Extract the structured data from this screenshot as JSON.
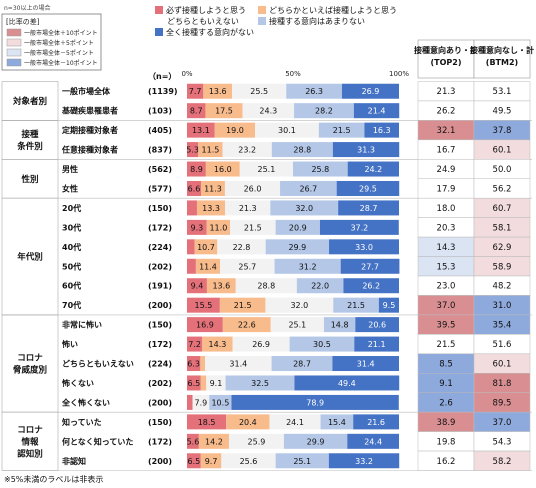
{
  "header": {
    "note": "n=30以上の場合",
    "legend_title": "[比率の差]",
    "diff_legend": [
      {
        "label": "一般市場全体＋10ポイント",
        "color": "#d98f92"
      },
      {
        "label": "一般市場全体＋5ポイント",
        "color": "#f2dcdd"
      },
      {
        "label": "一般市場全体－5ポイント",
        "color": "#dbe4f3"
      },
      {
        "label": "一般市場全体－10ポイント",
        "color": "#8ea9db"
      }
    ],
    "n_label": "（n=）",
    "footnote": "※5%未満のラベルは非表示"
  },
  "chart_data": {
    "type": "bar",
    "stacked": true,
    "orientation": "horizontal",
    "xlim": [
      0,
      100
    ],
    "xticks": [
      "0%",
      "50%",
      "100%"
    ],
    "series": [
      {
        "name": "必ず接種しようと思う",
        "color": "#e4717a"
      },
      {
        "name": "どちらかといえば接種しようと思う",
        "color": "#f8bb8c"
      },
      {
        "name": "どちらともいえない",
        "color": "#f2f2f2"
      },
      {
        "name": "接種する意向はあまりない",
        "color": "#b4c7e7"
      },
      {
        "name": "全く接種する意向がない",
        "color": "#4472c4"
      }
    ],
    "summary_headers": [
      "接種意向あり・計\n(TOP2)",
      "接種意向なし・計\n(BTM2)"
    ],
    "groups": [
      {
        "name": "対象者別",
        "rows": [
          0,
          1
        ]
      },
      {
        "name": "接種\n条件別",
        "rows": [
          2,
          3
        ]
      },
      {
        "name": "性別",
        "rows": [
          4,
          5
        ]
      },
      {
        "name": "年代別",
        "rows": [
          6,
          7,
          8,
          9,
          10,
          11
        ]
      },
      {
        "name": "コロナ\n脅威度別",
        "rows": [
          12,
          13,
          14,
          15,
          16
        ]
      },
      {
        "name": "コロナ\n情報\n認知別",
        "rows": [
          17,
          18,
          19
        ]
      }
    ],
    "rows": [
      {
        "label": "一般市場全体",
        "n": "(1139)",
        "values": [
          7.7,
          13.6,
          25.5,
          26.3,
          26.9
        ],
        "top2": 21.3,
        "btm2": 53.1,
        "top2_flag": "",
        "btm2_flag": ""
      },
      {
        "label": "基礎疾患罹患者",
        "n": "(103)",
        "values": [
          8.7,
          17.5,
          24.3,
          28.2,
          21.4
        ],
        "top2": 26.2,
        "btm2": 49.5,
        "top2_flag": "",
        "btm2_flag": ""
      },
      {
        "label": "定期接種対象者",
        "n": "(405)",
        "values": [
          13.1,
          19.0,
          30.1,
          21.5,
          16.3
        ],
        "top2": 32.1,
        "btm2": 37.8,
        "top2_flag": "p10",
        "btm2_flag": "m10"
      },
      {
        "label": "任意接種対象者",
        "n": "(837)",
        "values": [
          5.3,
          11.5,
          23.2,
          28.8,
          31.3
        ],
        "top2": 16.7,
        "btm2": 60.1,
        "top2_flag": "",
        "btm2_flag": "p5"
      },
      {
        "label": "男性",
        "n": "(562)",
        "values": [
          8.9,
          16.0,
          25.1,
          25.8,
          24.2
        ],
        "top2": 24.9,
        "btm2": 50.0,
        "top2_flag": "",
        "btm2_flag": ""
      },
      {
        "label": "女性",
        "n": "(577)",
        "values": [
          6.6,
          11.3,
          26.0,
          26.7,
          29.5
        ],
        "top2": 17.9,
        "btm2": 56.2,
        "top2_flag": "",
        "btm2_flag": ""
      },
      {
        "label": "20代",
        "n": "(150)",
        "values": [
          4.7,
          13.3,
          21.3,
          32.0,
          28.7
        ],
        "top2": 18.0,
        "btm2": 60.7,
        "top2_flag": "",
        "btm2_flag": "p5"
      },
      {
        "label": "30代",
        "n": "(172)",
        "values": [
          9.3,
          11.0,
          21.5,
          20.9,
          37.2
        ],
        "top2": 20.3,
        "btm2": 58.1,
        "top2_flag": "",
        "btm2_flag": "p5"
      },
      {
        "label": "40代",
        "n": "(224)",
        "values": [
          3.6,
          10.7,
          22.8,
          29.9,
          33.0
        ],
        "top2": 14.3,
        "btm2": 62.9,
        "top2_flag": "m5",
        "btm2_flag": "p5"
      },
      {
        "label": "50代",
        "n": "(202)",
        "values": [
          4.2,
          11.4,
          25.7,
          31.2,
          27.7
        ],
        "top2": 15.3,
        "btm2": 58.9,
        "top2_flag": "m5",
        "btm2_flag": "p5"
      },
      {
        "label": "60代",
        "n": "(191)",
        "values": [
          9.4,
          13.6,
          28.8,
          22.0,
          26.2
        ],
        "top2": 23.0,
        "btm2": 48.2,
        "top2_flag": "",
        "btm2_flag": ""
      },
      {
        "label": "70代",
        "n": "(200)",
        "values": [
          15.5,
          21.5,
          32.0,
          21.5,
          9.5
        ],
        "top2": 37.0,
        "btm2": 31.0,
        "top2_flag": "p10",
        "btm2_flag": "m10"
      },
      {
        "label": "非常に怖い",
        "n": "(150)",
        "values": [
          16.9,
          22.6,
          25.1,
          14.8,
          20.6
        ],
        "top2": 39.5,
        "btm2": 35.4,
        "top2_flag": "p10",
        "btm2_flag": "m10"
      },
      {
        "label": "怖い",
        "n": "(172)",
        "values": [
          7.2,
          14.3,
          26.9,
          30.5,
          21.1
        ],
        "top2": 21.5,
        "btm2": 51.6,
        "top2_flag": "",
        "btm2_flag": ""
      },
      {
        "label": "どちらともいえない",
        "n": "(224)",
        "values": [
          6.3,
          2.2,
          31.4,
          28.7,
          31.4
        ],
        "top2": 8.5,
        "btm2": 60.1,
        "top2_flag": "m10",
        "btm2_flag": "p5"
      },
      {
        "label": "怖くない",
        "n": "(202)",
        "values": [
          6.5,
          2.6,
          9.1,
          32.5,
          49.4
        ],
        "top2": 9.1,
        "btm2": 81.8,
        "top2_flag": "m10",
        "btm2_flag": "p10"
      },
      {
        "label": "全く怖くない",
        "n": "(200)",
        "values": [
          2.6,
          0.0,
          7.9,
          10.5,
          78.9
        ],
        "top2": 2.6,
        "btm2": 89.5,
        "top2_flag": "m10",
        "btm2_flag": "p10"
      },
      {
        "label": "知っていた",
        "n": "(150)",
        "values": [
          18.5,
          20.4,
          24.1,
          15.4,
          21.6
        ],
        "top2": 38.9,
        "btm2": 37.0,
        "top2_flag": "p10",
        "btm2_flag": "m10"
      },
      {
        "label": "何となく知っていた",
        "n": "(172)",
        "values": [
          5.6,
          14.2,
          25.9,
          29.9,
          24.4
        ],
        "top2": 19.8,
        "btm2": 54.3,
        "top2_flag": "",
        "btm2_flag": ""
      },
      {
        "label": "非認知",
        "n": "(200)",
        "values": [
          6.5,
          9.7,
          25.6,
          25.1,
          33.2
        ],
        "top2": 16.2,
        "btm2": 58.2,
        "top2_flag": "",
        "btm2_flag": "p5"
      }
    ]
  }
}
